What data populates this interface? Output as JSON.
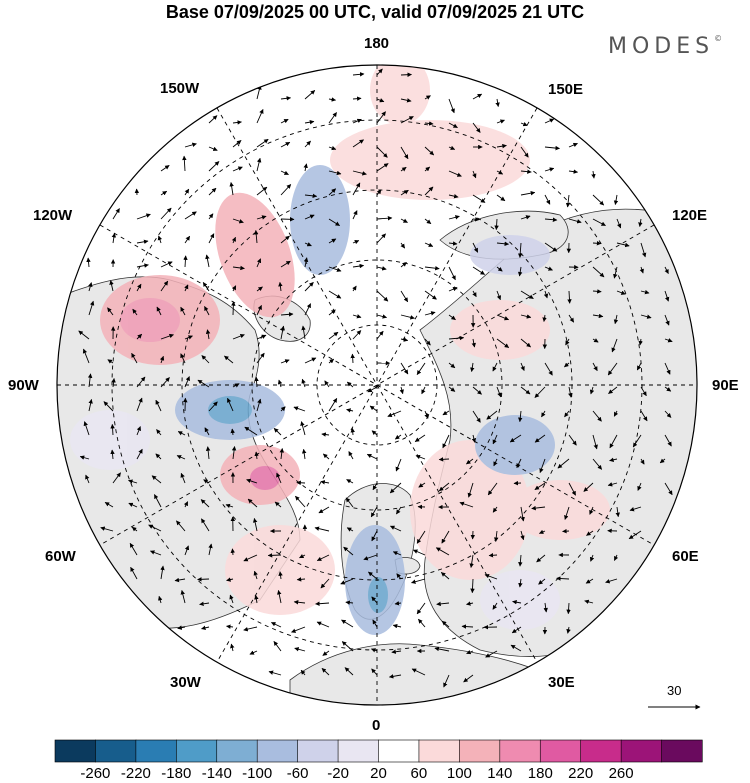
{
  "title": "Base 07/09/2025 00 UTC, valid 07/09/2025 21 UTC",
  "brand": "MODES",
  "brand_mark": "©",
  "meridian_labels": {
    "top": "180",
    "bottom": "0",
    "left": "90W",
    "right": "90E",
    "upper_left_1": "150W",
    "upper_left_2": "120W",
    "lower_left_1": "60W",
    "lower_left_2": "30W",
    "upper_right_1": "150E",
    "upper_right_2": "120E",
    "lower_right_1": "60E",
    "lower_right_2": "30E"
  },
  "reference_vector": {
    "label": "30"
  },
  "colorbar": {
    "ticks": [
      "-260",
      "-220",
      "-180",
      "-140",
      "-100",
      "-60",
      "-20",
      "20",
      "60",
      "100",
      "140",
      "180",
      "220",
      "260"
    ],
    "colors": [
      "#0b3a5e",
      "#175d8c",
      "#2a7db3",
      "#4f9cc8",
      "#7eaed3",
      "#a9bddf",
      "#cfd2ea",
      "#e9e6f2",
      "#ffffff",
      "#fbdada",
      "#f4b2b9",
      "#ef8bb0",
      "#e05aa2",
      "#c82c8b",
      "#9c1478",
      "#6a0a5e"
    ]
  },
  "palette": {
    "land": "#e8e8e8",
    "ocean": "#ffffff",
    "grid": "#000000"
  }
}
